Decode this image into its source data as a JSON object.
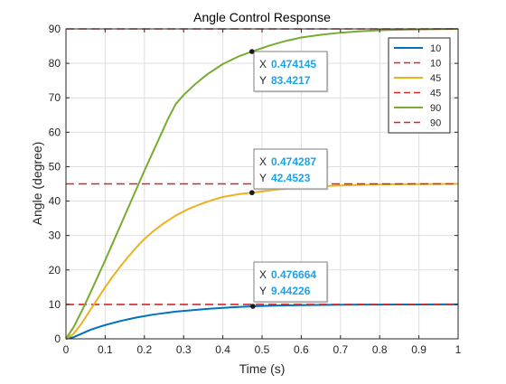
{
  "chart_data": {
    "type": "line",
    "title": "Angle Control Response",
    "xlabel": "Time (s)",
    "ylabel": "Angle (degree)",
    "xlim": [
      0,
      1
    ],
    "ylim": [
      0,
      90
    ],
    "xticks": [
      {
        "value": 0,
        "label": "0"
      },
      {
        "value": 0.1,
        "label": "0.1"
      },
      {
        "value": 0.2,
        "label": "0.2"
      },
      {
        "value": 0.3,
        "label": "0.3"
      },
      {
        "value": 0.4,
        "label": "0.4"
      },
      {
        "value": 0.5,
        "label": "0.5"
      },
      {
        "value": 0.6,
        "label": "0.6"
      },
      {
        "value": 0.7,
        "label": "0.7"
      },
      {
        "value": 0.8,
        "label": "0.8"
      },
      {
        "value": 0.9,
        "label": "0.9"
      },
      {
        "value": 1,
        "label": "1"
      }
    ],
    "yticks": [
      {
        "value": 0,
        "label": "0"
      },
      {
        "value": 10,
        "label": "10"
      },
      {
        "value": 20,
        "label": "20"
      },
      {
        "value": 30,
        "label": "30"
      },
      {
        "value": 40,
        "label": "40"
      },
      {
        "value": 50,
        "label": "50"
      },
      {
        "value": 60,
        "label": "60"
      },
      {
        "value": 70,
        "label": "70"
      },
      {
        "value": 80,
        "label": "80"
      },
      {
        "value": 90,
        "label": "90"
      }
    ],
    "grid": true,
    "legend_position": "top-right",
    "series": [
      {
        "name": "10",
        "color": "#0072bd",
        "style": "solid",
        "x": [
          0,
          0.02,
          0.04,
          0.06,
          0.08,
          0.1,
          0.12,
          0.14,
          0.16,
          0.18,
          0.2,
          0.22,
          0.24,
          0.26,
          0.28,
          0.3,
          0.33,
          0.36,
          0.4,
          0.44,
          0.476664,
          0.52,
          0.56,
          0.6,
          0.65,
          0.7,
          0.75,
          0.8,
          0.85,
          0.9,
          0.95,
          1.0
        ],
        "y": [
          0,
          0.5,
          1.5,
          2.5,
          3.3,
          4.0,
          4.6,
          5.2,
          5.7,
          6.2,
          6.6,
          7.0,
          7.3,
          7.6,
          7.9,
          8.1,
          8.4,
          8.7,
          9.0,
          9.25,
          9.44226,
          9.6,
          9.7,
          9.78,
          9.85,
          9.9,
          9.93,
          9.95,
          9.97,
          9.98,
          9.99,
          10.0
        ]
      },
      {
        "name": "10",
        "color": "#d62728",
        "style": "dashed",
        "x": [
          0,
          1
        ],
        "y": [
          10,
          10
        ]
      },
      {
        "name": "45",
        "color": "#edb120",
        "style": "solid",
        "x": [
          0,
          0.02,
          0.04,
          0.06,
          0.08,
          0.1,
          0.12,
          0.14,
          0.16,
          0.18,
          0.2,
          0.22,
          0.25,
          0.28,
          0.31,
          0.34,
          0.37,
          0.4,
          0.44,
          0.474287,
          0.52,
          0.56,
          0.6,
          0.65,
          0.7,
          0.75,
          0.8,
          0.85,
          0.9,
          0.95,
          1.0
        ],
        "y": [
          0,
          1.5,
          4.5,
          8.0,
          11.5,
          15.0,
          18.2,
          21.2,
          24.0,
          26.6,
          29.0,
          31.0,
          33.6,
          35.8,
          37.6,
          39.0,
          40.2,
          41.2,
          42.0,
          42.4523,
          43.1,
          43.6,
          43.95,
          44.3,
          44.55,
          44.72,
          44.83,
          44.9,
          44.95,
          44.98,
          45.0
        ]
      },
      {
        "name": "45",
        "color": "#d62728",
        "style": "dashed",
        "x": [
          0,
          1
        ],
        "y": [
          45,
          45
        ]
      },
      {
        "name": "90",
        "color": "#77ac30",
        "style": "solid",
        "x": [
          0,
          0.02,
          0.04,
          0.06,
          0.08,
          0.1,
          0.12,
          0.14,
          0.16,
          0.18,
          0.2,
          0.22,
          0.24,
          0.26,
          0.28,
          0.3,
          0.33,
          0.36,
          0.4,
          0.44,
          0.474145,
          0.52,
          0.56,
          0.6,
          0.65,
          0.7,
          0.75,
          0.8,
          0.85,
          0.9,
          0.95,
          1.0
        ],
        "y": [
          0,
          3.5,
          8.0,
          12.8,
          17.8,
          22.8,
          28.0,
          33.2,
          38.4,
          43.6,
          48.8,
          53.8,
          58.8,
          63.8,
          68.2,
          70.8,
          74.0,
          76.8,
          79.8,
          82.0,
          83.4217,
          85.2,
          86.5,
          87.5,
          88.3,
          88.9,
          89.3,
          89.6,
          89.78,
          89.88,
          89.95,
          90.0
        ]
      },
      {
        "name": "90",
        "color": "#d62728",
        "style": "dashed",
        "x": [
          0,
          1
        ],
        "y": [
          90,
          90
        ]
      }
    ],
    "datatips": [
      {
        "x": 0.474145,
        "y": 83.4217,
        "x_text": "0.474145",
        "y_text": "83.4217",
        "x_label": "X",
        "y_label": "Y"
      },
      {
        "x": 0.474287,
        "y": 42.4523,
        "x_text": "0.474287",
        "y_text": "42.4523",
        "x_label": "X",
        "y_label": "Y"
      },
      {
        "x": 0.476664,
        "y": 9.44226,
        "x_text": "0.476664",
        "y_text": "9.44226",
        "x_label": "X",
        "y_label": "Y"
      }
    ]
  }
}
